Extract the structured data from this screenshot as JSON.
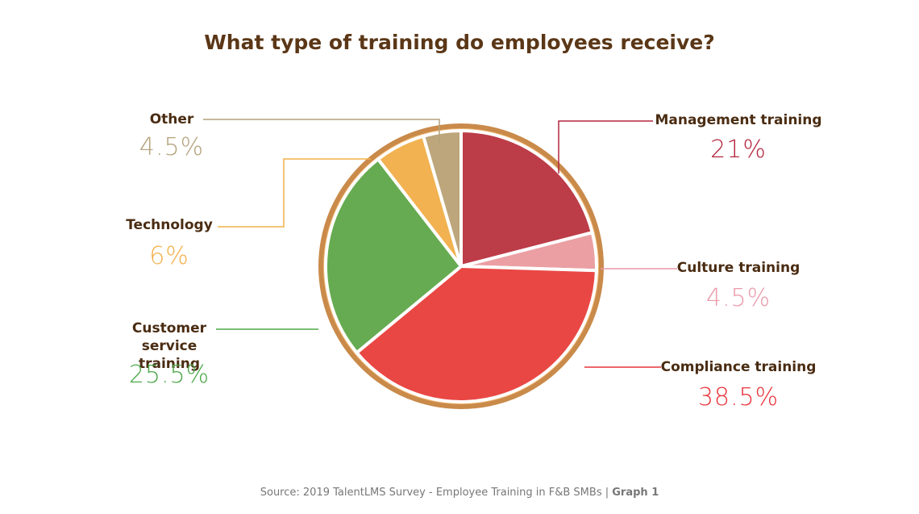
{
  "chart_data": {
    "type": "pie",
    "title": "What type of training do employees receive?",
    "categories": [
      "Management training",
      "Culture training",
      "Compliance training",
      "Customer service training",
      "Technology",
      "Other"
    ],
    "values": [
      21,
      4.5,
      38.5,
      25.5,
      6,
      4.5
    ],
    "value_labels": [
      "21%",
      "4.5%",
      "38.5%",
      "25.5%",
      "6%",
      "4.5%"
    ],
    "colors": [
      "#b3263f",
      "#ea9aaa",
      "#e8333b",
      "#4ea84a",
      "#f2b04a",
      "#b4a27c"
    ],
    "source": "Source: 2019 TalentLMS Survey - Employee Training in F&B SMBs |",
    "source_label": "Graph 1"
  }
}
